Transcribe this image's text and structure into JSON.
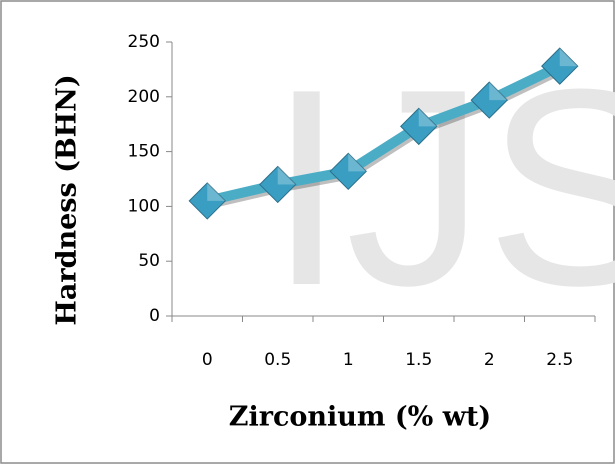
{
  "chart_data": {
    "type": "line",
    "watermark": "IJS",
    "xlabel": "Zirconium (% wt)",
    "ylabel": "Hardness (BHN)",
    "categories": [
      "0",
      "0.5",
      "1",
      "1.5",
      "2",
      "2.5"
    ],
    "series": [
      {
        "name": "Hardness",
        "color": "#4bacc6",
        "values": [
          105,
          120,
          132,
          173,
          197,
          228
        ]
      }
    ],
    "ylim": [
      0,
      250
    ],
    "yticks": [
      0,
      50,
      100,
      150,
      200,
      250
    ]
  }
}
